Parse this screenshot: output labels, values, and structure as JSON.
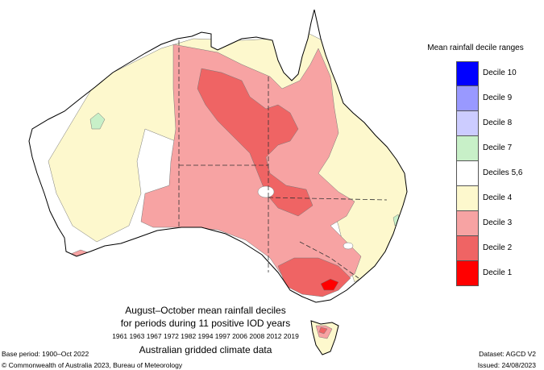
{
  "legend": {
    "title": "Mean rainfall decile ranges",
    "items": [
      {
        "label": "Decile 10",
        "color": "#0000ff"
      },
      {
        "label": "Decile 9",
        "color": "#9999ff"
      },
      {
        "label": "Decile 8",
        "color": "#ccccff"
      },
      {
        "label": "Decile 7",
        "color": "#c8f0c8"
      },
      {
        "label": "Deciles 5,6",
        "color": "#ffffff"
      },
      {
        "label": "Decile 4",
        "color": "#fdf8cd"
      },
      {
        "label": "Decile 3",
        "color": "#f7a3a3"
      },
      {
        "label": "Decile 2",
        "color": "#ef6464"
      },
      {
        "label": "Decile 1",
        "color": "#ff0000"
      }
    ]
  },
  "caption": {
    "line1": "August–October mean rainfall deciles",
    "line2": "for periods during 11 positive IOD years",
    "line3": "1961 1963 1967 1972 1982 1994 1997 2006 2008 2012 2019",
    "line4": "Australian gridded climate data"
  },
  "footer": {
    "base_period": "Base period: 1900–Oct 2022",
    "copyright": "© Commonwealth of Australia 2023, Bureau of Meteorology",
    "dataset": "Dataset: AGCD V2",
    "issued": "Issued: 24/08/2023"
  },
  "colors": {
    "outline": "#000000",
    "border_dash": "#333333"
  }
}
